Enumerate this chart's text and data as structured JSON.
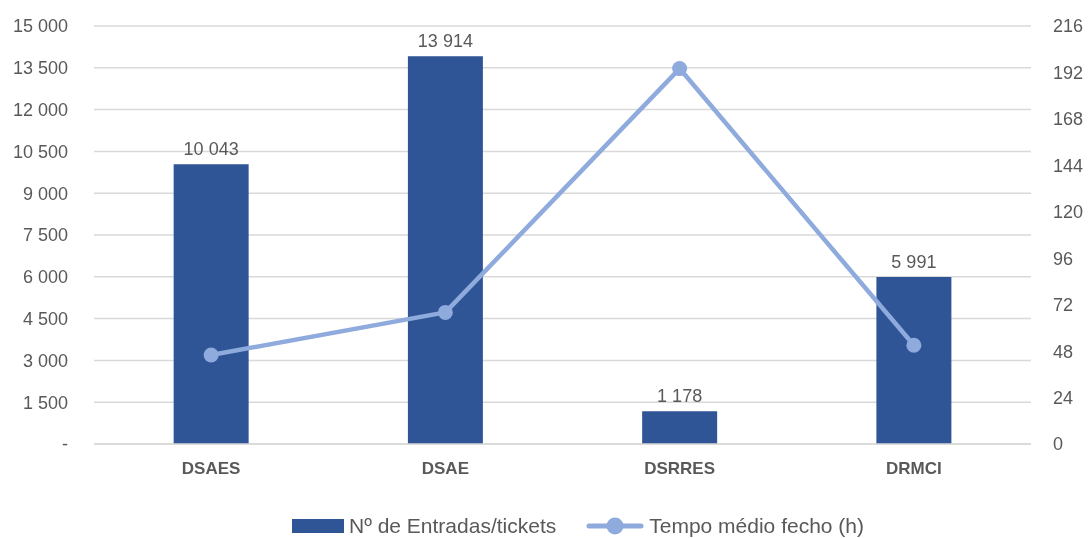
{
  "chart_data": {
    "type": "bar",
    "categories": [
      "DSAES",
      "DSAE",
      "DSRRES",
      "DRMCI"
    ],
    "series": [
      {
        "name": "Nº de Entradas/tickets",
        "color": "#2f5597",
        "values": [
          10043,
          13914,
          1178,
          5991
        ],
        "value_labels": [
          "10 043",
          "13 914",
          "1 178",
          "5 991"
        ]
      },
      {
        "name": "Tempo médio fecho (h)",
        "type": "line",
        "axis": "y2",
        "color": "#8faadc",
        "values": [
          46,
          68,
          194,
          51
        ],
        "marker": "circle"
      }
    ],
    "ylim": [
      0,
      15000
    ],
    "yticks": [
      {
        "value": 0,
        "label": "-"
      },
      {
        "value": 1500,
        "label": "1 500"
      },
      {
        "value": 3000,
        "label": "3 000"
      },
      {
        "value": 4500,
        "label": "4 500"
      },
      {
        "value": 6000,
        "label": "6 000"
      },
      {
        "value": 7500,
        "label": "7 500"
      },
      {
        "value": 9000,
        "label": "9 000"
      },
      {
        "value": 10500,
        "label": "10 500"
      },
      {
        "value": 12000,
        "label": "12 000"
      },
      {
        "value": 13500,
        "label": "13 500"
      },
      {
        "value": 15000,
        "label": "15 000"
      }
    ],
    "y2lim": [
      0,
      216
    ],
    "y2ticks": [
      0,
      24,
      48,
      72,
      96,
      120,
      144,
      168,
      192,
      216
    ],
    "grid": "y",
    "legend": "bottom"
  }
}
